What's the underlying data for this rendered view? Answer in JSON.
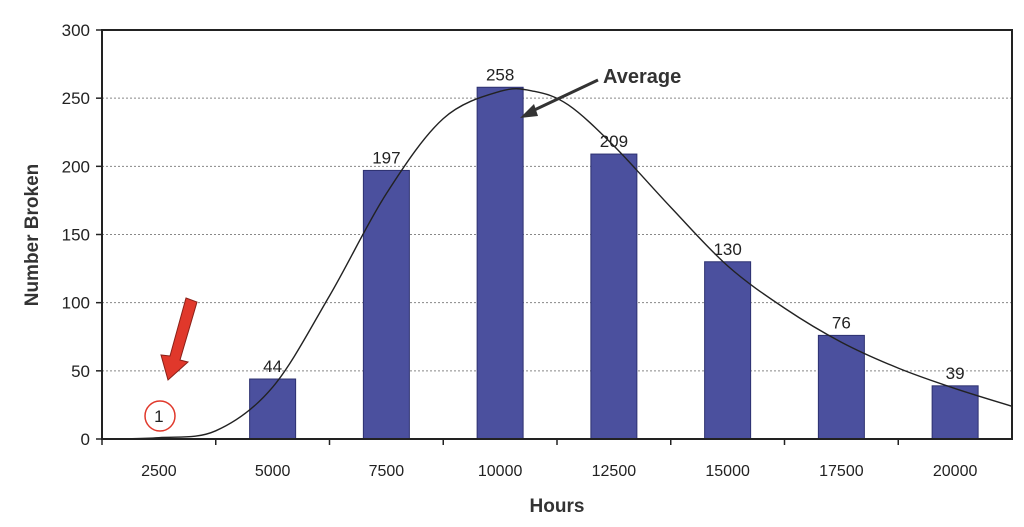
{
  "chart_data": {
    "type": "bar",
    "title": "",
    "xlabel": "Hours",
    "ylabel": "Number Broken",
    "categories": [
      "2500",
      "5000",
      "7500",
      "10000",
      "12500",
      "15000",
      "17500",
      "20000"
    ],
    "values": [
      1,
      44,
      197,
      258,
      209,
      130,
      76,
      39
    ],
    "data_labels": [
      "1",
      "44",
      "197",
      "258",
      "209",
      "130",
      "76",
      "39"
    ],
    "ylim": [
      0,
      300
    ],
    "yticks": [
      "0",
      "50",
      "100",
      "150",
      "200",
      "250",
      "300"
    ],
    "ytick_values": [
      0,
      50,
      100,
      150,
      200,
      250,
      300
    ],
    "grid": true,
    "bar_color": "#4b509e",
    "fit_curve": {
      "name": "distribution curve",
      "x_index": [
        -0.5,
        0,
        0.5,
        1,
        1.5,
        2,
        2.5,
        3,
        3.3,
        3.6,
        4,
        4.5,
        5,
        5.5,
        6,
        6.5,
        7,
        7.5
      ],
      "y": [
        0,
        1,
        6,
        38,
        105,
        180,
        235,
        255,
        255,
        245,
        215,
        170,
        127,
        96,
        71,
        52,
        37,
        24
      ]
    },
    "annotations": {
      "average_label": "Average",
      "circled_value": "1",
      "highlight_color": "#e0382b"
    }
  }
}
